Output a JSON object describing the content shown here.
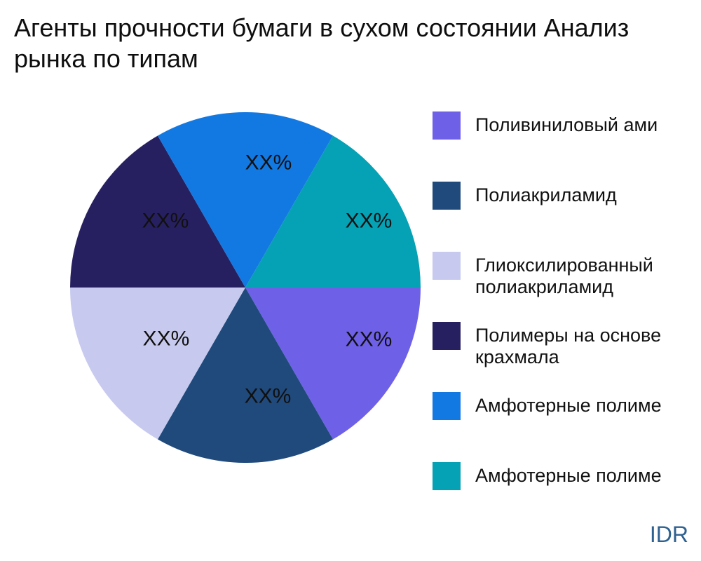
{
  "title": "Агенты прочности бумаги в сухом состоянии Анализ рынка по типам",
  "watermark": "IDR",
  "colors": {
    "background": "#ffffff",
    "title_text": "#0e0e0e",
    "label_text": "#101010",
    "watermark_text": "#2E6190"
  },
  "chart_data": {
    "type": "pie",
    "title": "Агенты прочности бумаги в сухом состоянии Анализ рынка по типам",
    "start_angle_deg": 0,
    "direction": "clockwise",
    "values_masked": true,
    "slices": [
      {
        "name": "Поливиниловый ами",
        "display_value": "XX%",
        "angle_deg": 60,
        "color": "#6E61E8"
      },
      {
        "name": "Полиакриламид",
        "display_value": "XX%",
        "angle_deg": 60,
        "color": "#204A7C"
      },
      {
        "name": "Глиоксилированный полиакриламид",
        "display_value": "XX%",
        "angle_deg": 60,
        "color": "#C7CAEE"
      },
      {
        "name": "Полимеры на основе крахмала",
        "display_value": "XX%",
        "angle_deg": 60,
        "color": "#272060"
      },
      {
        "name": "Амфотерные полиме",
        "display_value": "XX%",
        "angle_deg": 60,
        "color": "#1379E2"
      },
      {
        "name": "Амфотерные полиме",
        "display_value": "XX%",
        "angle_deg": 60,
        "color": "#05A1B5"
      }
    ],
    "legend_position": "right"
  },
  "legend": {
    "items": [
      {
        "label": "Поливиниловый ами",
        "color": "#6E61E8"
      },
      {
        "label": "Полиакриламид",
        "color": "#204A7C"
      },
      {
        "label": "Глиоксилированный\nполиакриламид",
        "color": "#C7CAEE"
      },
      {
        "label": "Полимеры на основе\nкрахмала",
        "color": "#272060"
      },
      {
        "label": "Амфотерные полиме",
        "color": "#1379E2"
      },
      {
        "label": "Амфотерные полиме",
        "color": "#05A1B5"
      }
    ]
  }
}
